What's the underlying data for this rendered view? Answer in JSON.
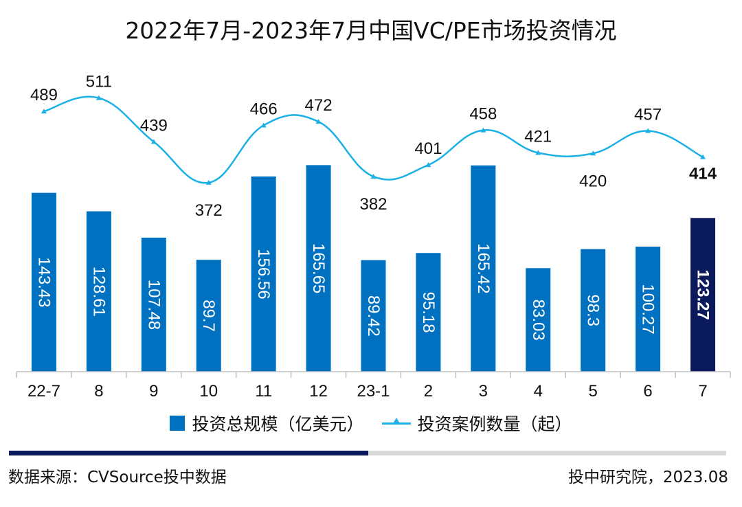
{
  "chart_data": {
    "type": "bar",
    "title": "2022年7月-2023年7月中国VC/PE市场投资情况",
    "categories": [
      "22-7",
      "8",
      "9",
      "10",
      "11",
      "12",
      "23-1",
      "2",
      "3",
      "4",
      "5",
      "6",
      "7"
    ],
    "series": [
      {
        "name": "投资总规模（亿美元）",
        "type": "bar",
        "values": [
          143.43,
          128.61,
          107.48,
          89.7,
          156.56,
          165.65,
          89.42,
          95.18,
          165.42,
          83.03,
          98.3,
          100.27,
          123.27
        ],
        "labels": [
          "143.43",
          "128.61",
          "107.48",
          "89.7",
          "156.56",
          "165.65",
          "89.42",
          "95.18",
          "165.42",
          "83.03",
          "98.3",
          "100.27",
          "123.27"
        ],
        "color": "#0070C0",
        "highlight_color": "#0B1A5C",
        "highlight_index": 12
      },
      {
        "name": "投资案例数量（起）",
        "type": "line",
        "values": [
          489,
          511,
          439,
          372,
          466,
          472,
          382,
          401,
          458,
          421,
          420,
          457,
          414
        ],
        "color": "#1BB0E6"
      }
    ],
    "legend_position": "bottom",
    "grid": false
  },
  "legend": {
    "bar_label": "投资总规模（亿美元）",
    "line_label": "投资案例数量（起）"
  },
  "footer": {
    "source": "数据来源：CVSource投中数据",
    "credit": "投中研究院，2023.08"
  },
  "colors": {
    "divider_dark": "#0B1A5C",
    "divider_light": "#D9D9D9"
  }
}
